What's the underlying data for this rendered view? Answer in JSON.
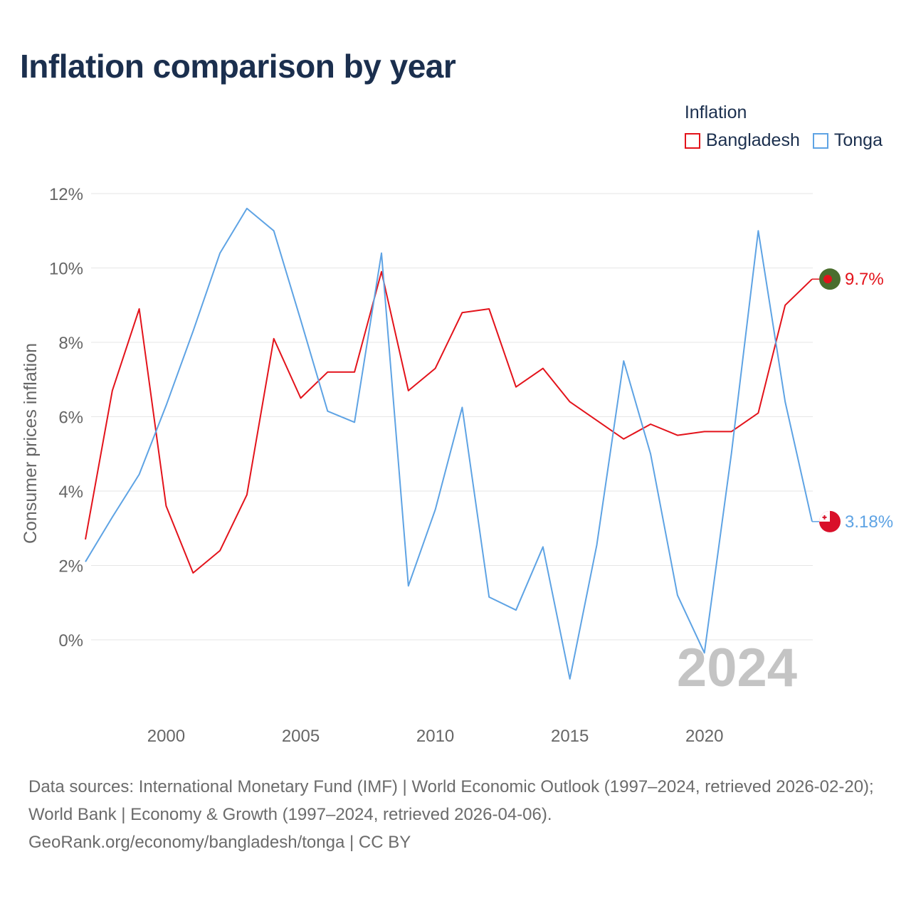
{
  "chart_data": {
    "type": "line",
    "title": "Inflation comparison by year",
    "ylabel": "Consumer prices inflation",
    "xlabel": "",
    "legend_title": "Inflation",
    "legend_position": "top-right",
    "grid": true,
    "ylim": [
      -1.6,
      12
    ],
    "xlim": [
      1997,
      2024
    ],
    "y_ticks": [
      {
        "value": 12,
        "label": "12%"
      },
      {
        "value": 10,
        "label": "10%"
      },
      {
        "value": 8,
        "label": "8%"
      },
      {
        "value": 6,
        "label": "6%"
      },
      {
        "value": 4,
        "label": "4%"
      },
      {
        "value": 2,
        "label": "2%"
      },
      {
        "value": 0,
        "label": "0%"
      }
    ],
    "x_ticks": [
      {
        "value": 2000,
        "label": "2000"
      },
      {
        "value": 2005,
        "label": "2005"
      },
      {
        "value": 2010,
        "label": "2010"
      },
      {
        "value": 2015,
        "label": "2015"
      },
      {
        "value": 2020,
        "label": "2020"
      }
    ],
    "x": [
      1997,
      1998,
      1999,
      2000,
      2001,
      2002,
      2003,
      2004,
      2005,
      2006,
      2007,
      2008,
      2009,
      2010,
      2011,
      2012,
      2013,
      2014,
      2015,
      2016,
      2017,
      2018,
      2019,
      2020,
      2021,
      2022,
      2023,
      2024
    ],
    "series": [
      {
        "name": "Bangladesh",
        "color": "#e3131b",
        "end_label": "9.7%",
        "values": [
          2.7,
          6.7,
          8.9,
          3.6,
          1.8,
          2.4,
          3.9,
          8.1,
          6.5,
          7.2,
          7.2,
          9.9,
          6.7,
          7.3,
          8.8,
          8.9,
          6.8,
          7.3,
          6.4,
          5.9,
          5.4,
          5.8,
          5.5,
          5.6,
          5.6,
          6.1,
          9.0,
          9.7
        ]
      },
      {
        "name": "Tonga",
        "color": "#5ea3e4",
        "end_label": "3.18%",
        "values": [
          2.1,
          3.3,
          4.45,
          6.3,
          8.3,
          10.4,
          11.6,
          11.0,
          8.6,
          6.15,
          5.85,
          10.4,
          1.45,
          3.5,
          6.25,
          1.15,
          0.8,
          2.5,
          -1.05,
          2.55,
          7.5,
          5.0,
          1.2,
          -0.35,
          5.0,
          11.0,
          6.4,
          3.18
        ]
      }
    ],
    "year_watermark": "2024"
  },
  "source": {
    "text": "Data sources: International Monetary Fund (IMF) | World Economic Outlook (1997–2024, retrieved 2026-02-20); World Bank | Economy & Growth (1997–2024, retrieved 2026-04-06).",
    "credit": "GeoRank.org/economy/bangladesh/tonga | CC BY"
  }
}
